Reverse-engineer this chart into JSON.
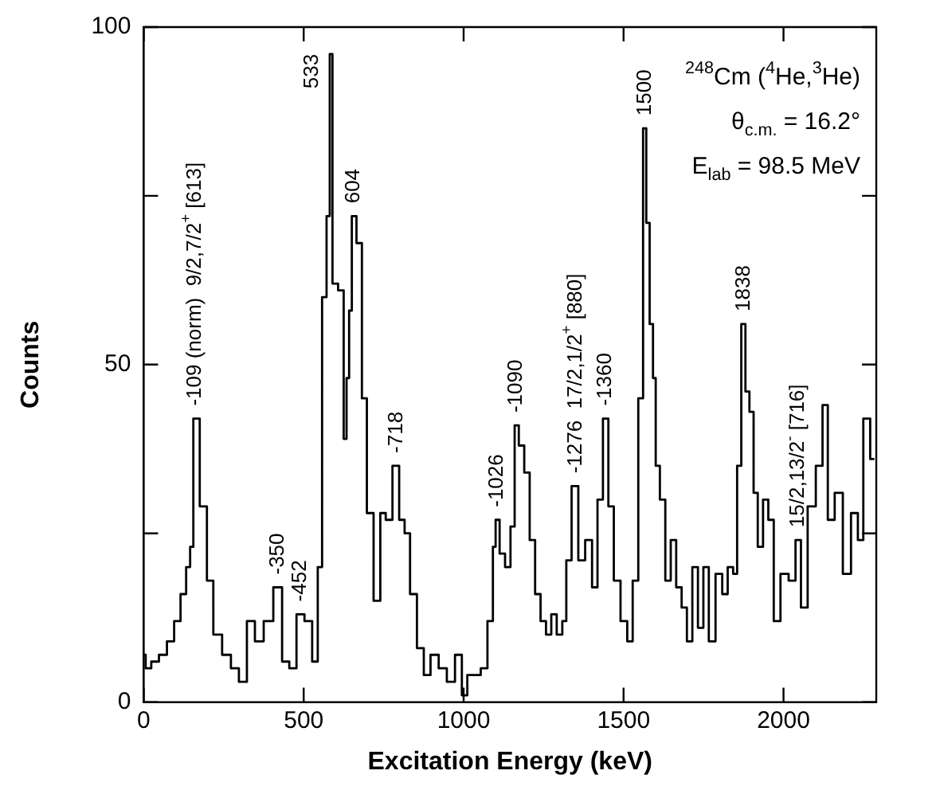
{
  "chart_data": {
    "type": "step",
    "xlabel": "Excitation Energy (keV)",
    "ylabel": "Counts",
    "xlim": [
      0,
      2290
    ],
    "xticks": [
      0,
      500,
      1000,
      1500,
      2000
    ],
    "ylim": [
      0,
      100
    ],
    "yticks": [
      0,
      {
        "value": 25,
        "label": null
      },
      50,
      {
        "value": 75,
        "label": null
      },
      100
    ],
    "grid": false,
    "legend": false,
    "marker": "none",
    "line_style": "solid",
    "series": [
      {
        "color": "#000000",
        "x": [
          0,
          12,
          35,
          60,
          85,
          105,
          125,
          140,
          150,
          160,
          190,
          205,
          230,
          260,
          285,
          310,
          335,
          360,
          390,
          420,
          445,
          465,
          490,
          515,
          538,
          550,
          565,
          578,
          585,
          595,
          620,
          630,
          638,
          646,
          655,
          675,
          689,
          706,
          731,
          748,
          765,
          790,
          807,
          824,
          841,
          867,
          884,
          909,
          935,
          960,
          986,
          1003,
          1020,
          1045,
          1062,
          1087,
          1096,
          1104,
          1121,
          1138,
          1155,
          1164,
          1181,
          1198,
          1215,
          1232,
          1249,
          1266,
          1282,
          1300,
          1317,
          1325,
          1350,
          1367,
          1393,
          1410,
          1427,
          1444,
          1461,
          1478,
          1503,
          1520,
          1537,
          1555,
          1567,
          1575,
          1588,
          1596,
          1605,
          1622,
          1639,
          1656,
          1673,
          1690,
          1706,
          1724,
          1741,
          1758,
          1775,
          1800,
          1817,
          1834,
          1851,
          1859,
          1877,
          1885,
          1902,
          1911,
          1928,
          1944,
          1961,
          1978,
          2003,
          2029,
          2046,
          2063,
          2088,
          2114,
          2130,
          2147,
          2173,
          2198,
          2224,
          2241,
          2258,
          2284
        ],
        "values": [
          7,
          5,
          6,
          7,
          9,
          12,
          16,
          20,
          23,
          42,
          29,
          18,
          10,
          7,
          5,
          3,
          12,
          9,
          12,
          17,
          6,
          5,
          13,
          12,
          6,
          20,
          60,
          72,
          96,
          62,
          61,
          39,
          48,
          58,
          72,
          68,
          45,
          28,
          15,
          28,
          27,
          35,
          27,
          25,
          16,
          8,
          4,
          7,
          5,
          3,
          7,
          1,
          4,
          4,
          5,
          12,
          23,
          27,
          22,
          20,
          26,
          41,
          38,
          34,
          24,
          16,
          12,
          10,
          13,
          10,
          12,
          21,
          32,
          21,
          24,
          17,
          30,
          42,
          29,
          18,
          12,
          9,
          18,
          45,
          85,
          71,
          56,
          48,
          35,
          30,
          18,
          24,
          17,
          14,
          9,
          20,
          11,
          20,
          9,
          19,
          16,
          20,
          19,
          35,
          56,
          46,
          43,
          31,
          23,
          30,
          27,
          12,
          19,
          18,
          24,
          14,
          29,
          35,
          44,
          27,
          31,
          19,
          28,
          24,
          42,
          36
        ]
      }
    ],
    "annotations": [
      "$^{248}$Cm ($^{4}$He,$^{3}$He)",
      "θ$_{c.m.}$ = 16.2°",
      "E$_{lab}$ = 98.5 MeV",
      {
        "text": "-109 (norm)  9/2,7/2$^{+}$ [613]",
        "x": 160,
        "y": 42
      },
      {
        "text": "533",
        "x": 585,
        "y": 96
      },
      {
        "text": "604",
        "x": 655,
        "y": 72
      },
      {
        "text": "-350",
        "x": 420,
        "y": 17
      },
      {
        "text": "-452",
        "x": 490,
        "y": 13
      },
      {
        "text": "-718",
        "x": 790,
        "y": 35
      },
      {
        "text": "-1026",
        "x": 1104,
        "y": 27
      },
      {
        "text": "-1090",
        "x": 1164,
        "y": 41
      },
      {
        "text": "-1276  17/2,1/2$^{+}$ [880]",
        "x": 1350,
        "y": 32
      },
      {
        "text": "-1360",
        "x": 1444,
        "y": 42
      },
      {
        "text": "1500",
        "x": 1567,
        "y": 85
      },
      {
        "text": "1838",
        "x": 1877,
        "y": 56
      },
      {
        "text": "15/2,13/2$^{-}$ [716]",
        "x": 2046,
        "y": 24
      }
    ]
  }
}
